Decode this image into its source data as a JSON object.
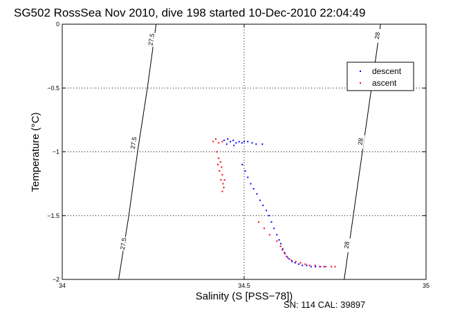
{
  "chart_data": {
    "type": "scatter",
    "title": "SG502 RossSea Nov 2010, dive 198 started 10-Dec-2010 22:04:49",
    "xlabel": "Salinity (S [PSS−78])",
    "ylabel": "Temperature (°C)",
    "xlim": [
      34,
      35
    ],
    "ylim": [
      -2,
      0
    ],
    "x_ticks": [
      34,
      34.5,
      35
    ],
    "x_tick_labels": [
      "34",
      "34.5",
      "35"
    ],
    "y_ticks": [
      -2,
      -1.5,
      -1,
      -0.5,
      0
    ],
    "y_tick_labels": [
      "−2",
      "−1.5",
      "−1",
      "−0.5",
      "0"
    ],
    "grid": true,
    "legend_position": "top-right",
    "footer": "SN: 114  CAL: 39897",
    "density_contours": [
      {
        "value": 27.5,
        "points": [
          [
            34.155,
            -2.0
          ],
          [
            34.183,
            -1.5
          ],
          [
            34.207,
            -1.0
          ],
          [
            34.234,
            -0.5
          ],
          [
            34.258,
            0.0
          ]
        ],
        "labels": [
          {
            "text": "27.5",
            "x": 34.168,
            "y": -1.72
          },
          {
            "text": "27.5",
            "x": 34.196,
            "y": -0.93
          },
          {
            "text": "27.5",
            "x": 34.245,
            "y": -0.12
          }
        ]
      },
      {
        "value": 28,
        "points": [
          [
            34.775,
            -2.0
          ],
          [
            34.8,
            -1.5
          ],
          [
            34.825,
            -1.0
          ],
          [
            34.85,
            -0.5
          ],
          [
            34.875,
            0.0
          ]
        ],
        "labels": [
          {
            "text": "28",
            "x": 34.782,
            "y": -1.73
          },
          {
            "text": "28",
            "x": 34.82,
            "y": -0.92
          },
          {
            "text": "28",
            "x": 34.866,
            "y": -0.09
          }
        ]
      }
    ],
    "series": [
      {
        "name": "descent",
        "color": "#0000ff",
        "points": [
          [
            34.455,
            -0.9
          ],
          [
            34.462,
            -0.92
          ],
          [
            34.47,
            -0.91
          ],
          [
            34.478,
            -0.93
          ],
          [
            34.486,
            -0.92
          ],
          [
            34.494,
            -0.93
          ],
          [
            34.5,
            -0.92
          ],
          [
            34.51,
            -0.92
          ],
          [
            34.522,
            -0.93
          ],
          [
            34.533,
            -0.94
          ],
          [
            34.55,
            -0.94
          ],
          [
            34.445,
            -0.91
          ],
          [
            34.452,
            -0.94
          ],
          [
            34.472,
            -0.95
          ],
          [
            34.495,
            -1.1
          ],
          [
            34.503,
            -1.15
          ],
          [
            34.51,
            -1.2
          ],
          [
            34.518,
            -1.25
          ],
          [
            34.526,
            -1.29
          ],
          [
            34.535,
            -1.33
          ],
          [
            34.544,
            -1.38
          ],
          [
            34.552,
            -1.42
          ],
          [
            34.561,
            -1.46
          ],
          [
            34.568,
            -1.5
          ],
          [
            34.575,
            -1.55
          ],
          [
            34.582,
            -1.6
          ],
          [
            34.59,
            -1.65
          ],
          [
            34.596,
            -1.69
          ],
          [
            34.601,
            -1.72
          ],
          [
            34.606,
            -1.76
          ],
          [
            34.611,
            -1.79
          ],
          [
            34.617,
            -1.82
          ],
          [
            34.624,
            -1.84
          ],
          [
            34.632,
            -1.86
          ],
          [
            34.64,
            -1.87
          ],
          [
            34.65,
            -1.88
          ],
          [
            34.66,
            -1.89
          ],
          [
            34.672,
            -1.89
          ],
          [
            34.684,
            -1.9
          ],
          [
            34.696,
            -1.9
          ],
          [
            34.708,
            -1.9
          ],
          [
            34.72,
            -1.9
          ]
        ]
      },
      {
        "name": "ascent",
        "color": "#ff0000",
        "points": [
          [
            34.415,
            -0.92
          ],
          [
            34.422,
            -0.9
          ],
          [
            34.43,
            -0.93
          ],
          [
            34.44,
            -0.92
          ],
          [
            34.425,
            -1.0
          ],
          [
            34.43,
            -1.05
          ],
          [
            34.435,
            -1.08
          ],
          [
            34.428,
            -1.1
          ],
          [
            34.438,
            -1.12
          ],
          [
            34.432,
            -1.15
          ],
          [
            34.44,
            -1.18
          ],
          [
            34.436,
            -1.22
          ],
          [
            34.442,
            -1.25
          ],
          [
            34.444,
            -1.28
          ],
          [
            34.44,
            -1.31
          ],
          [
            34.446,
            -1.22
          ],
          [
            34.54,
            -1.55
          ],
          [
            34.555,
            -1.6
          ],
          [
            34.57,
            -1.65
          ],
          [
            34.59,
            -1.7
          ],
          [
            34.6,
            -1.74
          ],
          [
            34.605,
            -1.77
          ],
          [
            34.612,
            -1.8
          ],
          [
            34.62,
            -1.83
          ],
          [
            34.63,
            -1.85
          ],
          [
            34.642,
            -1.86
          ],
          [
            34.655,
            -1.87
          ],
          [
            34.668,
            -1.88
          ],
          [
            34.68,
            -1.89
          ],
          [
            34.695,
            -1.89
          ],
          [
            34.71,
            -1.9
          ],
          [
            34.725,
            -1.9
          ],
          [
            34.74,
            -1.9
          ],
          [
            34.75,
            -1.9
          ]
        ]
      }
    ]
  }
}
